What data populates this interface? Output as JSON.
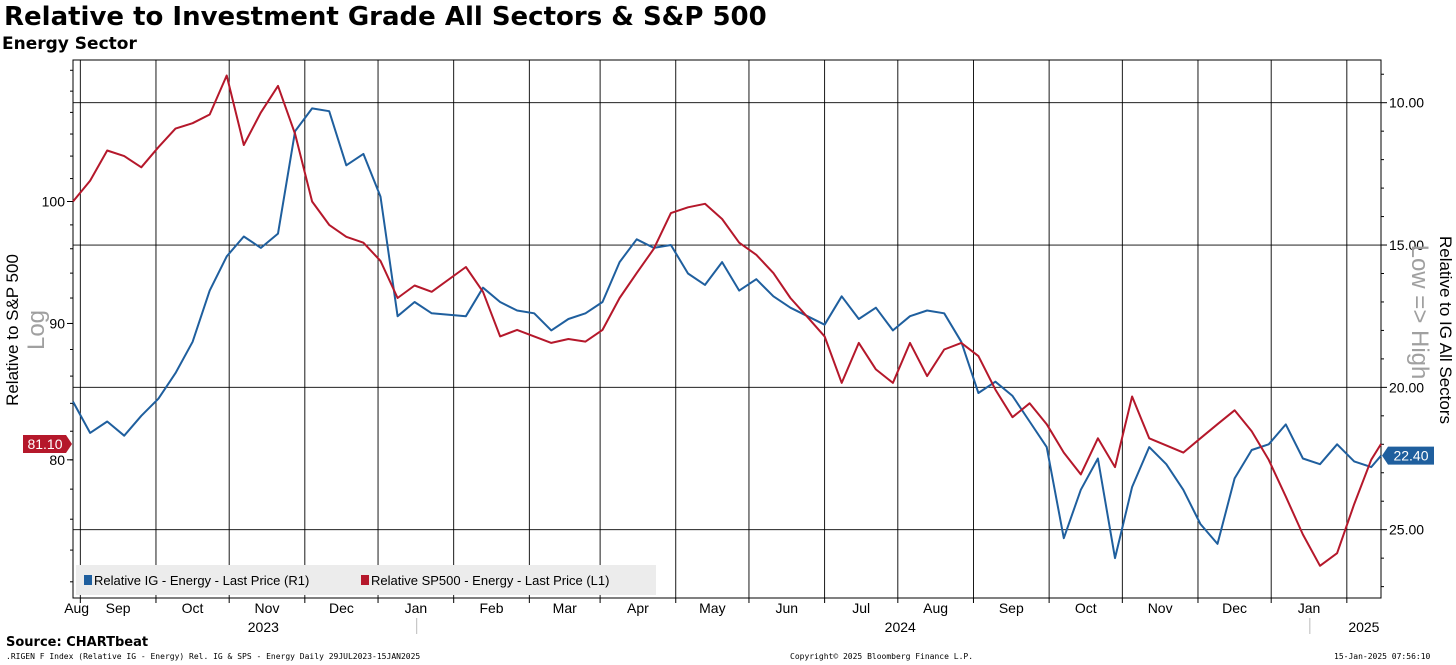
{
  "header": {
    "title": "Relative to Investment Grade All Sectors & S&P 500",
    "subtitle": "Energy Sector"
  },
  "footer": {
    "source": "Source: CHARTbeat",
    "query": ".RIGEN F Index (Relative IG - Energy) Rel. IG & SPS - Energy  Daily 29JUL2023-15JAN2025",
    "copyright": "Copyright© 2025 Bloomberg Finance L.P.",
    "timestamp": "15-Jan-2025 07:56:10"
  },
  "chart_data": {
    "type": "line",
    "title": "Relative to Investment Grade All Sectors & S&P 500",
    "subtitle": "Energy Sector",
    "x_range": [
      "2023-07-29",
      "2025-01-15"
    ],
    "x_tick_labels": [
      "Aug",
      "Sep",
      "Oct",
      "Nov",
      "Dec",
      "Jan",
      "Feb",
      "Mar",
      "Apr",
      "May",
      "Jun",
      "Jul",
      "Aug",
      "Sep",
      "Oct",
      "Nov",
      "Dec",
      "Jan"
    ],
    "year_labels": [
      "2023",
      "2024",
      "2025"
    ],
    "left_axis": {
      "label": "Relative to S&P 500",
      "scale": "log",
      "scale_note": "Log",
      "ticks": [
        "100",
        "90",
        "80"
      ],
      "tick_values": [
        100,
        90,
        80
      ],
      "range": [
        71,
        113
      ]
    },
    "right_axis": {
      "label": "Relative to IG All Sectors",
      "note": "Low => High",
      "inverted": true,
      "ticks": [
        "10.00",
        "15.00",
        "20.00",
        "25.00"
      ],
      "tick_values": [
        10,
        15,
        20,
        25
      ],
      "range": [
        8.5,
        27.4
      ]
    },
    "legend": {
      "placement": "bottom-left",
      "items": [
        "Relative IG - Energy - Last Price (R1)",
        "Relative SP500 - Energy - Last Price (L1)"
      ]
    },
    "last_value_labels": {
      "sp500": "81.10",
      "ig": "22.40"
    },
    "colors": {
      "ig": "#1f5f9e",
      "sp500": "#b5182b"
    },
    "series": [
      {
        "name": "Relative IG - Energy - Last Price (R1)",
        "axis": "right",
        "color": "#1f5f9e",
        "points": [
          [
            "2023-07-29",
            20.5
          ],
          [
            "2023-08-05",
            21.6
          ],
          [
            "2023-08-12",
            21.2
          ],
          [
            "2023-08-19",
            21.7
          ],
          [
            "2023-08-26",
            21.0
          ],
          [
            "2023-09-02",
            20.4
          ],
          [
            "2023-09-09",
            19.5
          ],
          [
            "2023-09-16",
            18.4
          ],
          [
            "2023-09-23",
            16.6
          ],
          [
            "2023-09-30",
            15.4
          ],
          [
            "2023-10-07",
            14.7
          ],
          [
            "2023-10-14",
            15.1
          ],
          [
            "2023-10-21",
            14.6
          ],
          [
            "2023-10-28",
            11.0
          ],
          [
            "2023-11-04",
            10.2
          ],
          [
            "2023-11-11",
            10.3
          ],
          [
            "2023-11-18",
            12.2
          ],
          [
            "2023-11-25",
            11.8
          ],
          [
            "2023-12-02",
            13.3
          ],
          [
            "2023-12-09",
            17.5
          ],
          [
            "2023-12-16",
            17.0
          ],
          [
            "2023-12-23",
            17.4
          ],
          [
            "2024-01-06",
            17.5
          ],
          [
            "2024-01-13",
            16.5
          ],
          [
            "2024-01-20",
            17.0
          ],
          [
            "2024-01-27",
            17.3
          ],
          [
            "2024-02-03",
            17.4
          ],
          [
            "2024-02-10",
            18.0
          ],
          [
            "2024-02-17",
            17.6
          ],
          [
            "2024-02-24",
            17.4
          ],
          [
            "2024-03-02",
            17.0
          ],
          [
            "2024-03-09",
            15.6
          ],
          [
            "2024-03-16",
            14.8
          ],
          [
            "2024-03-23",
            15.1
          ],
          [
            "2024-03-30",
            15.0
          ],
          [
            "2024-04-06",
            16.0
          ],
          [
            "2024-04-13",
            16.4
          ],
          [
            "2024-04-20",
            15.6
          ],
          [
            "2024-04-27",
            16.6
          ],
          [
            "2024-05-04",
            16.2
          ],
          [
            "2024-05-11",
            16.8
          ],
          [
            "2024-05-18",
            17.2
          ],
          [
            "2024-05-25",
            17.5
          ],
          [
            "2024-06-01",
            17.8
          ],
          [
            "2024-06-08",
            16.8
          ],
          [
            "2024-06-15",
            17.6
          ],
          [
            "2024-06-22",
            17.2
          ],
          [
            "2024-06-29",
            18.0
          ],
          [
            "2024-07-06",
            17.5
          ],
          [
            "2024-07-13",
            17.3
          ],
          [
            "2024-07-20",
            17.4
          ],
          [
            "2024-07-27",
            18.4
          ],
          [
            "2024-08-03",
            20.2
          ],
          [
            "2024-08-10",
            19.8
          ],
          [
            "2024-08-17",
            20.3
          ],
          [
            "2024-08-24",
            21.2
          ],
          [
            "2024-08-31",
            22.1
          ],
          [
            "2024-09-07",
            25.3
          ],
          [
            "2024-09-14",
            23.6
          ],
          [
            "2024-09-21",
            22.5
          ],
          [
            "2024-09-28",
            26.0
          ],
          [
            "2024-10-05",
            23.5
          ],
          [
            "2024-10-12",
            22.1
          ],
          [
            "2024-10-19",
            22.7
          ],
          [
            "2024-10-26",
            23.6
          ],
          [
            "2024-11-02",
            24.8
          ],
          [
            "2024-11-09",
            25.5
          ],
          [
            "2024-11-16",
            23.2
          ],
          [
            "2024-11-23",
            22.2
          ],
          [
            "2024-11-30",
            22.0
          ],
          [
            "2024-12-07",
            21.3
          ],
          [
            "2024-12-14",
            22.5
          ],
          [
            "2024-12-21",
            22.7
          ],
          [
            "2024-12-28",
            22.0
          ],
          [
            "2025-01-04",
            22.6
          ],
          [
            "2025-01-11",
            22.8
          ],
          [
            "2025-01-15",
            22.4
          ]
        ]
      },
      {
        "name": "Relative SP500 - Energy - Last Price (L1)",
        "axis": "left",
        "color": "#b5182b",
        "points": [
          [
            "2023-07-29",
            100.0
          ],
          [
            "2023-08-05",
            101.8
          ],
          [
            "2023-08-12",
            104.5
          ],
          [
            "2023-08-19",
            104.0
          ],
          [
            "2023-08-26",
            103.0
          ],
          [
            "2023-09-02",
            104.8
          ],
          [
            "2023-09-09",
            106.5
          ],
          [
            "2023-09-16",
            107.0
          ],
          [
            "2023-09-23",
            107.8
          ],
          [
            "2023-09-30",
            111.5
          ],
          [
            "2023-10-07",
            105.0
          ],
          [
            "2023-10-14",
            108.0
          ],
          [
            "2023-10-21",
            110.5
          ],
          [
            "2023-10-28",
            106.0
          ],
          [
            "2023-11-04",
            100.0
          ],
          [
            "2023-11-11",
            98.0
          ],
          [
            "2023-11-18",
            97.0
          ],
          [
            "2023-11-25",
            96.5
          ],
          [
            "2023-12-02",
            95.0
          ],
          [
            "2023-12-09",
            92.0
          ],
          [
            "2023-12-16",
            93.0
          ],
          [
            "2023-12-23",
            92.5
          ],
          [
            "2024-01-06",
            94.5
          ],
          [
            "2024-01-13",
            92.5
          ],
          [
            "2024-01-20",
            89.0
          ],
          [
            "2024-01-27",
            89.5
          ],
          [
            "2024-02-03",
            89.0
          ],
          [
            "2024-02-10",
            88.5
          ],
          [
            "2024-02-17",
            88.8
          ],
          [
            "2024-02-24",
            88.6
          ],
          [
            "2024-03-02",
            89.5
          ],
          [
            "2024-03-09",
            92.0
          ],
          [
            "2024-03-16",
            94.0
          ],
          [
            "2024-03-23",
            96.0
          ],
          [
            "2024-03-30",
            99.0
          ],
          [
            "2024-04-06",
            99.5
          ],
          [
            "2024-04-13",
            99.8
          ],
          [
            "2024-04-20",
            98.5
          ],
          [
            "2024-04-27",
            96.5
          ],
          [
            "2024-05-04",
            95.5
          ],
          [
            "2024-05-11",
            94.0
          ],
          [
            "2024-05-18",
            92.0
          ],
          [
            "2024-05-25",
            90.5
          ],
          [
            "2024-06-01",
            89.0
          ],
          [
            "2024-06-08",
            85.5
          ],
          [
            "2024-06-15",
            88.5
          ],
          [
            "2024-06-22",
            86.5
          ],
          [
            "2024-06-29",
            85.5
          ],
          [
            "2024-07-06",
            88.5
          ],
          [
            "2024-07-13",
            86.0
          ],
          [
            "2024-07-20",
            88.0
          ],
          [
            "2024-07-27",
            88.5
          ],
          [
            "2024-08-03",
            87.5
          ],
          [
            "2024-08-10",
            85.0
          ],
          [
            "2024-08-17",
            83.0
          ],
          [
            "2024-08-24",
            84.0
          ],
          [
            "2024-08-31",
            82.5
          ],
          [
            "2024-09-07",
            80.5
          ],
          [
            "2024-09-14",
            79.0
          ],
          [
            "2024-09-21",
            81.5
          ],
          [
            "2024-09-28",
            79.5
          ],
          [
            "2024-10-05",
            84.5
          ],
          [
            "2024-10-12",
            81.5
          ],
          [
            "2024-10-19",
            81.0
          ],
          [
            "2024-10-26",
            80.5
          ],
          [
            "2024-11-02",
            81.5
          ],
          [
            "2024-11-09",
            82.5
          ],
          [
            "2024-11-16",
            83.5
          ],
          [
            "2024-11-23",
            82.0
          ],
          [
            "2024-11-30",
            80.0
          ],
          [
            "2024-12-07",
            77.5
          ],
          [
            "2024-12-14",
            75.0
          ],
          [
            "2024-12-21",
            73.0
          ],
          [
            "2024-12-28",
            73.8
          ],
          [
            "2025-01-04",
            77.0
          ],
          [
            "2025-01-11",
            80.0
          ],
          [
            "2025-01-15",
            81.1
          ]
        ]
      }
    ]
  }
}
